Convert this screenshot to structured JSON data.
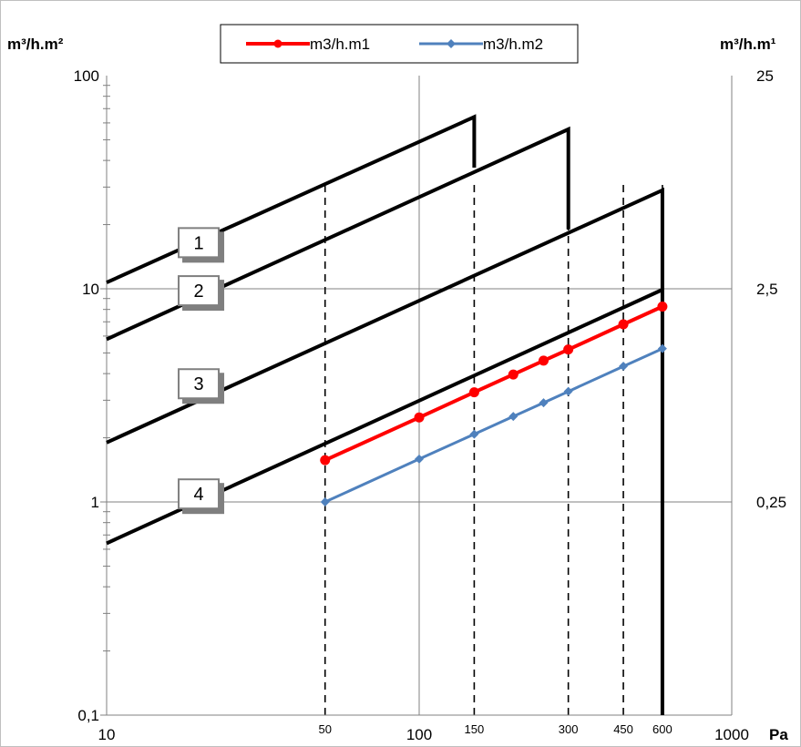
{
  "chart_data": {
    "type": "line",
    "x_scale": "log",
    "y_scale": "log",
    "xlim": [
      10,
      1000
    ],
    "ylim": [
      0.1,
      100
    ],
    "xlabel": "Pa",
    "ylabel": "m³/h.m²",
    "ylabel_right": "m³/h.m¹",
    "x_ticks": [
      "10",
      "100",
      "1000"
    ],
    "x_ticks_secondary": [
      "50",
      "150",
      "300",
      "450",
      "600"
    ],
    "y_ticks": [
      "0,1",
      "1",
      "10",
      "100"
    ],
    "y_ticks_right": [
      "0,25",
      "2,5",
      "25"
    ],
    "grid": "major",
    "legend": {
      "placement": "top-center"
    },
    "series": [
      {
        "name": "m3/h.m1",
        "color": "#ff0000",
        "marker": "circle",
        "x": [
          50,
          100,
          150,
          200,
          250,
          300,
          450,
          600
        ],
        "y": [
          1.57,
          2.49,
          3.27,
          3.96,
          4.6,
          5.19,
          6.81,
          8.25
        ]
      },
      {
        "name": "m3/h.m2",
        "color": "#4f81bd",
        "marker": "diamond",
        "x": [
          50,
          100,
          150,
          200,
          250,
          300,
          450,
          600
        ],
        "y": [
          1.0,
          1.59,
          2.08,
          2.52,
          2.92,
          3.3,
          4.33,
          5.24
        ]
      }
    ],
    "class_limits": [
      {
        "label": "1",
        "x": [
          10,
          150,
          150
        ],
        "y": [
          10.7,
          64,
          37
        ]
      },
      {
        "label": "2",
        "x": [
          10,
          300,
          300
        ],
        "y": [
          5.8,
          56,
          19
        ]
      },
      {
        "label": "3",
        "x": [
          10,
          600,
          600
        ],
        "y": [
          1.9,
          29,
          0.1
        ]
      },
      {
        "label": "4",
        "x": [
          10,
          600
        ],
        "y": [
          0.64,
          9.9
        ]
      }
    ],
    "reference_lines_x": [
      50,
      150,
      300,
      450,
      600
    ]
  }
}
